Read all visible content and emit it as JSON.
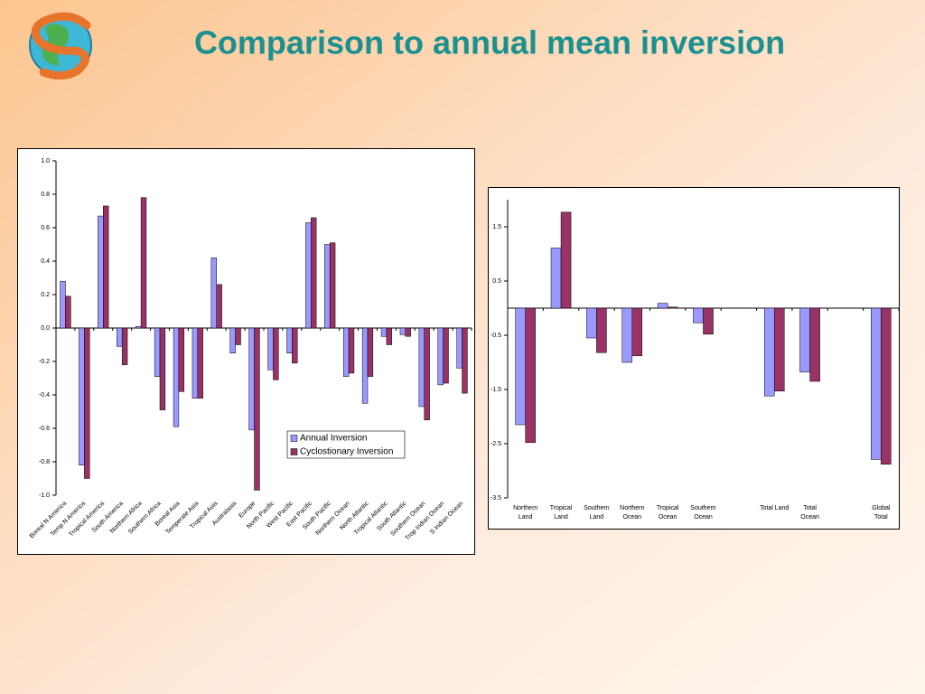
{
  "title": "Comparison to annual mean inversion",
  "chart_data": [
    {
      "type": "bar",
      "categories": [
        "Boreal N America",
        "Temp N America",
        "Tropical America",
        "South America",
        "Northern Africa",
        "Southern Africa",
        "Boreal Asia",
        "Temperate Asia",
        "Tropical Asia",
        "Australasia",
        "Europe",
        "North Pacific",
        "West Pacific",
        "East Pacific",
        "South Pacific",
        "Northern Ocean",
        "North Atlantic",
        "Tropical Atlantic",
        "South Atlantic",
        "Southern Ocean",
        "Trop Indian Ocean",
        "S Indian Ocean"
      ],
      "series": [
        {
          "name": "Annual Inversion",
          "color": "#9999ff",
          "values": [
            0.28,
            -0.82,
            0.67,
            -0.11,
            0.01,
            -0.29,
            -0.59,
            -0.42,
            0.42,
            -0.15,
            -0.61,
            -0.25,
            -0.15,
            0.63,
            0.5,
            -0.29,
            -0.45,
            -0.05,
            -0.04,
            -0.47,
            -0.34,
            -0.24
          ]
        },
        {
          "name": "Cyclostionary Inversion",
          "color": "#993366",
          "values": [
            0.19,
            -0.9,
            0.73,
            -0.22,
            0.78,
            -0.49,
            -0.38,
            -0.42,
            0.26,
            -0.1,
            -0.97,
            -0.31,
            -0.21,
            0.66,
            0.51,
            -0.27,
            -0.29,
            -0.1,
            -0.05,
            -0.55,
            -0.33,
            -0.39
          ]
        }
      ],
      "ylim": [
        -1.0,
        1.0
      ],
      "yticks": [
        {
          "value": 1.0,
          "label": "1.0"
        },
        0.8,
        0.6,
        0.4,
        0.2,
        {
          "value": 0.0,
          "label": "0.0"
        },
        -0.2,
        -0.4,
        -0.6,
        -0.8,
        {
          "value": -1.0,
          "label": "-1.0"
        }
      ],
      "legend": "lower right"
    },
    {
      "type": "bar",
      "categories": [
        "Northern\nLand",
        "Tropical\nLand",
        "Southern\nLand",
        "Northern\nOcean",
        "Tropical\nOcean",
        "Southern\nOcean",
        null,
        "Total Land",
        "Total\nOcean",
        null,
        "Global\nTotal"
      ],
      "series": [
        {
          "name": "Annual Inversion",
          "color": "#9999ff",
          "values": [
            -2.15,
            1.11,
            -0.55,
            -1.0,
            0.09,
            -0.27,
            null,
            -1.62,
            -1.18,
            null,
            -2.79
          ]
        },
        {
          "name": "Cyclostionary Inversion",
          "color": "#993366",
          "values": [
            -2.48,
            1.77,
            -0.82,
            -0.88,
            0.02,
            -0.48,
            null,
            -1.53,
            -1.35,
            null,
            -2.88
          ]
        }
      ],
      "ylim": [
        -3.5,
        2.0
      ],
      "yticks": [
        1.5,
        0.5,
        -0.5,
        -1.5,
        -2.5,
        -3.5
      ]
    }
  ]
}
